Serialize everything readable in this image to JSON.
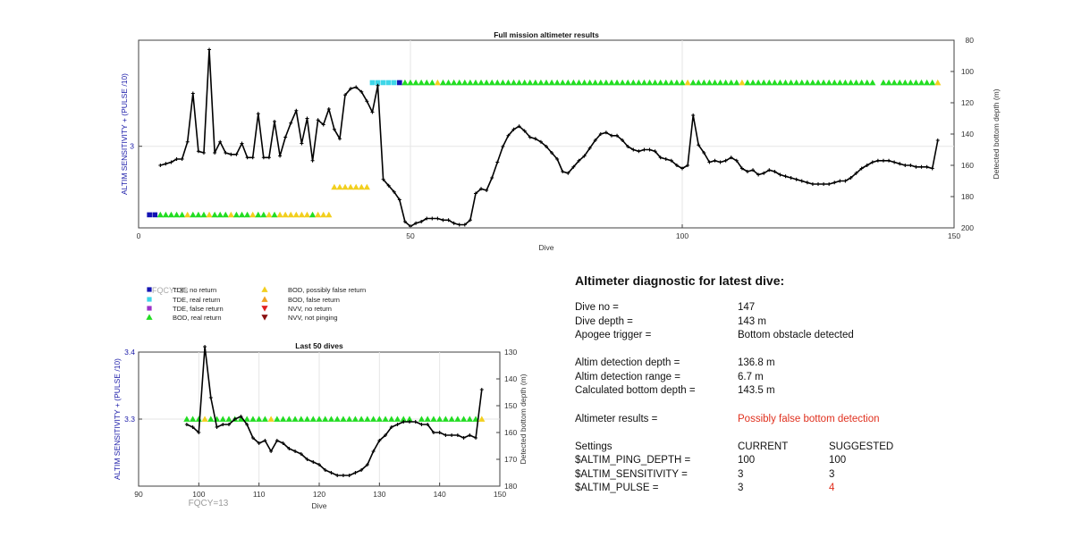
{
  "colors": {
    "tde_no_return": "#1414b4",
    "tde_real_return": "#3ed6e8",
    "tde_false_return": "#9b32c8",
    "bod_real_return": "#22dd22",
    "bod_possibly_false": "#f2cf1e",
    "bod_false_return": "#f0a020",
    "nvv_no_return": "#e02020",
    "nvv_not_pinging": "#8b1010",
    "axis_left_label": "#1a1aa8",
    "highlight": "#e0301e"
  },
  "legend": {
    "overlay_text": "FQCY=13",
    "items": [
      {
        "label": "TDE, no return",
        "shape": "square",
        "color_key": "tde_no_return"
      },
      {
        "label": "TDE, real return",
        "shape": "square",
        "color_key": "tde_real_return"
      },
      {
        "label": "TDE, false return",
        "shape": "square",
        "color_key": "tde_false_return"
      },
      {
        "label": "BOD, real return",
        "shape": "triangle-up",
        "color_key": "bod_real_return"
      },
      {
        "label": "BOD, possibly false return",
        "shape": "triangle-up",
        "color_key": "bod_possibly_false"
      },
      {
        "label": "BOD, false return",
        "shape": "triangle-up",
        "color_key": "bod_false_return"
      },
      {
        "label": "NVV, no return",
        "shape": "triangle-down",
        "color_key": "nvv_no_return"
      },
      {
        "label": "NVV, not pinging",
        "shape": "triangle-down",
        "color_key": "nvv_not_pinging"
      }
    ]
  },
  "fqcy_label": "FQCY=13",
  "chart_data": [
    {
      "type": "line",
      "title": "Full mission altimeter results",
      "xlabel": "Dive",
      "ylabel_left": "ALTIM SENSITIVITY + (PULSE /10)",
      "ylabel_right": "Detected bottom depth (m)",
      "xlim": [
        0,
        150
      ],
      "xticks": [
        0,
        50,
        100,
        150
      ],
      "ylim_left": [
        2.5,
        3.65
      ],
      "yticks_left": [
        3
      ],
      "ylim_right": [
        80,
        200
      ],
      "yticks_right": [
        80,
        100,
        120,
        140,
        160,
        180,
        200
      ],
      "right_axis_reversed": true,
      "grid": true,
      "depth_series": {
        "x": [
          4,
          5,
          6,
          7,
          8,
          9,
          10,
          11,
          12,
          13,
          14,
          15,
          16,
          17,
          18,
          19,
          20,
          21,
          22,
          23,
          24,
          25,
          26,
          27,
          28,
          29,
          30,
          31,
          32,
          33,
          34,
          35,
          36,
          37,
          38,
          39,
          40,
          41,
          42,
          43,
          44,
          45,
          46,
          47,
          48,
          49,
          50,
          51,
          52,
          53,
          54,
          55,
          56,
          57,
          58,
          59,
          60,
          61,
          62,
          63,
          64,
          65,
          66,
          67,
          68,
          69,
          70,
          71,
          72,
          73,
          74,
          75,
          76,
          77,
          78,
          79,
          80,
          81,
          82,
          83,
          84,
          85,
          86,
          87,
          88,
          89,
          90,
          91,
          92,
          93,
          94,
          95,
          96,
          97,
          98,
          99,
          100,
          101,
          102,
          103,
          104,
          105,
          106,
          107,
          108,
          109,
          110,
          111,
          112,
          113,
          114,
          115,
          116,
          117,
          118,
          119,
          120,
          121,
          122,
          123,
          124,
          125,
          126,
          127,
          128,
          129,
          130,
          131,
          132,
          133,
          134,
          135,
          136,
          137,
          138,
          139,
          140,
          141,
          142,
          143,
          144,
          145,
          146,
          147
        ],
        "y": [
          160,
          159,
          158,
          156,
          156,
          145,
          114,
          151,
          152,
          86,
          152,
          145,
          152,
          153,
          153,
          146,
          155,
          155,
          127,
          155,
          155,
          132,
          154,
          142,
          133,
          125,
          146,
          130,
          157,
          131,
          134,
          124,
          137,
          143,
          115,
          111,
          110,
          113,
          119,
          126,
          109,
          169,
          173,
          177,
          182,
          196,
          199,
          197,
          196,
          194,
          194,
          194,
          195,
          195,
          197,
          198,
          198,
          195,
          178,
          175,
          176,
          168,
          158,
          148,
          141,
          137,
          135,
          138,
          142,
          143,
          145,
          148,
          152,
          156,
          164,
          165,
          161,
          157,
          154,
          149,
          144,
          140,
          139,
          141,
          141,
          144,
          148,
          150,
          151,
          150,
          150,
          151,
          155,
          156,
          157,
          160,
          162,
          160,
          128,
          147,
          152,
          158,
          157,
          158,
          157,
          155,
          157,
          162,
          164,
          163,
          166,
          165,
          163,
          164,
          166,
          167,
          168,
          169,
          170,
          171,
          172,
          172,
          172,
          172,
          171,
          170,
          170,
          168,
          165,
          162,
          160,
          158,
          157,
          157,
          157,
          158,
          159,
          160,
          160,
          161,
          161,
          161,
          162,
          144
        ]
      },
      "altimeter_events": [
        {
          "start": 2,
          "end": 3,
          "level": 2.58,
          "color_key": "tde_no_return",
          "shape": "square"
        },
        {
          "start": 4,
          "end": 35,
          "level": 2.58,
          "pattern": "mixed_bod_low"
        },
        {
          "start": 36,
          "end": 42,
          "level": 2.75,
          "color_key": "bod_possibly_false",
          "shape": "triangle-up"
        },
        {
          "start": 43,
          "end": 47,
          "level": 3.39,
          "color_key": "tde_real_return",
          "shape": "square"
        },
        {
          "start": 48,
          "end": 48,
          "level": 3.39,
          "color_key": "tde_no_return",
          "shape": "square"
        },
        {
          "start": 49,
          "end": 147,
          "level": 3.39,
          "pattern": "mostly_bod_real_with_some_possibly_false"
        }
      ]
    },
    {
      "type": "line",
      "title": "Last 50 dives",
      "xlabel": "Dive",
      "ylabel_left": "ALTIM SENSITIVITY + (PULSE /10)",
      "ylabel_right": "Detected bottom depth (m)",
      "xlim": [
        90,
        150
      ],
      "xticks": [
        90,
        100,
        110,
        120,
        130,
        140,
        150
      ],
      "ylim_left": [
        3.2,
        3.4
      ],
      "yticks_left": [
        3.3,
        3.4
      ],
      "ylim_right": [
        130,
        180
      ],
      "yticks_right": [
        130,
        140,
        150,
        160,
        170,
        180
      ],
      "right_axis_reversed": true,
      "grid": true,
      "depth_series": {
        "x": [
          98,
          99,
          100,
          101,
          102,
          103,
          104,
          105,
          106,
          107,
          108,
          109,
          110,
          111,
          112,
          113,
          114,
          115,
          116,
          117,
          118,
          119,
          120,
          121,
          122,
          123,
          124,
          125,
          126,
          127,
          128,
          129,
          130,
          131,
          132,
          133,
          134,
          135,
          136,
          137,
          138,
          139,
          140,
          141,
          142,
          143,
          144,
          145,
          146,
          147
        ],
        "y": [
          157,
          158,
          160,
          128,
          147,
          158,
          157,
          157,
          155,
          154,
          157,
          162,
          164,
          163,
          167,
          163,
          164,
          166,
          167,
          168,
          170,
          171,
          172,
          174,
          175,
          176,
          176,
          176,
          175,
          174,
          172,
          167,
          163,
          161,
          158,
          157,
          156,
          156,
          156,
          157,
          157,
          160,
          160,
          161,
          161,
          161,
          162,
          161,
          162,
          144
        ]
      },
      "event_level": 3.3,
      "events": [
        {
          "dive": 98,
          "color_key": "bod_real_return"
        },
        {
          "dive": 99,
          "color_key": "bod_real_return"
        },
        {
          "dive": 100,
          "color_key": "bod_real_return"
        },
        {
          "dive": 101,
          "color_key": "bod_possibly_false"
        },
        {
          "dive": 102,
          "color_key": "bod_real_return"
        },
        {
          "dive": 103,
          "color_key": "bod_real_return"
        },
        {
          "dive": 104,
          "color_key": "bod_real_return"
        },
        {
          "dive": 105,
          "color_key": "bod_real_return"
        },
        {
          "dive": 106,
          "color_key": "bod_real_return"
        },
        {
          "dive": 107,
          "color_key": "bod_real_return"
        },
        {
          "dive": 108,
          "color_key": "bod_real_return"
        },
        {
          "dive": 109,
          "color_key": "bod_real_return"
        },
        {
          "dive": 110,
          "color_key": "bod_real_return"
        },
        {
          "dive": 111,
          "color_key": "bod_real_return"
        },
        {
          "dive": 112,
          "color_key": "bod_possibly_false"
        },
        {
          "dive": 113,
          "color_key": "bod_real_return"
        },
        {
          "dive": 114,
          "color_key": "bod_real_return"
        },
        {
          "dive": 115,
          "color_key": "bod_real_return"
        },
        {
          "dive": 116,
          "color_key": "bod_real_return"
        },
        {
          "dive": 117,
          "color_key": "bod_real_return"
        },
        {
          "dive": 118,
          "color_key": "bod_real_return"
        },
        {
          "dive": 119,
          "color_key": "bod_real_return"
        },
        {
          "dive": 120,
          "color_key": "bod_real_return"
        },
        {
          "dive": 121,
          "color_key": "bod_real_return"
        },
        {
          "dive": 122,
          "color_key": "bod_real_return"
        },
        {
          "dive": 123,
          "color_key": "bod_real_return"
        },
        {
          "dive": 124,
          "color_key": "bod_real_return"
        },
        {
          "dive": 125,
          "color_key": "bod_real_return"
        },
        {
          "dive": 126,
          "color_key": "bod_real_return"
        },
        {
          "dive": 127,
          "color_key": "bod_real_return"
        },
        {
          "dive": 128,
          "color_key": "bod_real_return"
        },
        {
          "dive": 129,
          "color_key": "bod_real_return"
        },
        {
          "dive": 130,
          "color_key": "bod_real_return"
        },
        {
          "dive": 131,
          "color_key": "bod_real_return"
        },
        {
          "dive": 132,
          "color_key": "bod_real_return"
        },
        {
          "dive": 133,
          "color_key": "bod_real_return"
        },
        {
          "dive": 134,
          "color_key": "bod_real_return"
        },
        {
          "dive": 135,
          "color_key": "bod_real_return"
        },
        {
          "dive": 137,
          "color_key": "bod_real_return"
        },
        {
          "dive": 138,
          "color_key": "bod_real_return"
        },
        {
          "dive": 139,
          "color_key": "bod_real_return"
        },
        {
          "dive": 140,
          "color_key": "bod_real_return"
        },
        {
          "dive": 141,
          "color_key": "bod_real_return"
        },
        {
          "dive": 142,
          "color_key": "bod_real_return"
        },
        {
          "dive": 143,
          "color_key": "bod_real_return"
        },
        {
          "dive": 144,
          "color_key": "bod_real_return"
        },
        {
          "dive": 145,
          "color_key": "bod_real_return"
        },
        {
          "dive": 146,
          "color_key": "bod_real_return"
        },
        {
          "dive": 147,
          "color_key": "bod_possibly_false"
        }
      ]
    }
  ],
  "diagnostic": {
    "title": "Altimeter diagnostic for latest dive:",
    "dive_no_label": "Dive no =",
    "dive_no_value": "147",
    "dive_depth_label": "Dive depth =",
    "dive_depth_value": "143 m",
    "apogee_label": "Apogee trigger =",
    "apogee_value": "Bottom obstacle detected",
    "detection_depth_label": "Altim detection depth =",
    "detection_depth_value": "136.8 m",
    "detection_range_label": "Altim detection range =",
    "detection_range_value": "6.7 m",
    "bottom_depth_label": "Calculated bottom depth =",
    "bottom_depth_value": "143.5 m",
    "results_label": "Altimeter results =",
    "results_value": "Possibly false bottom detection",
    "settings_label": "Settings",
    "current_header": "CURRENT",
    "suggested_header": "SUGGESTED",
    "settings": [
      {
        "name": "$ALTIM_PING_DEPTH =",
        "current": "100",
        "suggested": "100",
        "changed": false
      },
      {
        "name": "$ALTIM_SENSITIVITY =",
        "current": "3",
        "suggested": "3",
        "changed": false
      },
      {
        "name": "$ALTIM_PULSE =",
        "current": "3",
        "suggested": "4",
        "changed": true
      }
    ]
  }
}
